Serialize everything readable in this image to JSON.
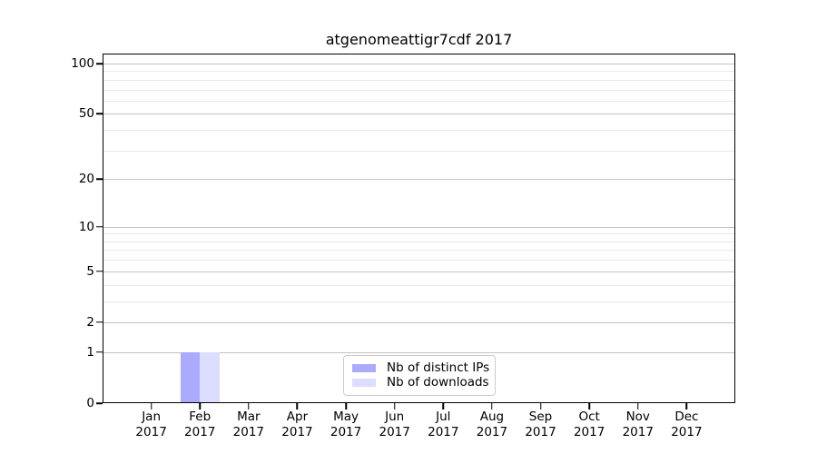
{
  "chart_data": {
    "type": "bar",
    "title": "atgenomeattigr7cdf 2017",
    "categories": [
      "Jan 2017",
      "Feb 2017",
      "Mar 2017",
      "Apr 2017",
      "May 2017",
      "Jun 2017",
      "Jul 2017",
      "Aug 2017",
      "Sep 2017",
      "Oct 2017",
      "Nov 2017",
      "Dec 2017"
    ],
    "x_tick_line1": [
      "Jan",
      "Feb",
      "Mar",
      "Apr",
      "May",
      "Jun",
      "Jul",
      "Aug",
      "Sep",
      "Oct",
      "Nov",
      "Dec"
    ],
    "x_tick_line2": [
      "2017",
      "2017",
      "2017",
      "2017",
      "2017",
      "2017",
      "2017",
      "2017",
      "2017",
      "2017",
      "2017",
      "2017"
    ],
    "series": [
      {
        "name": "Nb of distinct IPs",
        "color": "#aaaaff",
        "values": [
          0,
          1,
          0,
          0,
          0,
          0,
          0,
          0,
          0,
          0,
          0,
          0
        ]
      },
      {
        "name": "Nb of downloads",
        "color": "#ddddff",
        "values": [
          0,
          1,
          0,
          0,
          0,
          0,
          0,
          0,
          0,
          0,
          0,
          0
        ]
      }
    ],
    "y_axis": {
      "scale": "log1p",
      "tick_values": [
        0,
        1,
        2,
        5,
        10,
        20,
        50,
        100
      ],
      "tick_labels": [
        "0",
        "1",
        "2",
        "5",
        "10",
        "20",
        "50",
        "100"
      ],
      "minor_gridline_values": [
        3,
        4,
        6,
        7,
        8,
        9,
        30,
        40,
        60,
        70,
        80,
        90
      ],
      "range": [
        0,
        115
      ]
    },
    "grid": true,
    "legend_position": "lower center"
  },
  "colors": {
    "background": "#ffffff",
    "axis": "#000000",
    "major_grid": "#c3c3c3",
    "minor_grid": "#e9e9e9",
    "legend_border": "#cbcbcb",
    "bar_distinct_ips": "#aaaaff",
    "bar_downloads": "#ddddff"
  }
}
